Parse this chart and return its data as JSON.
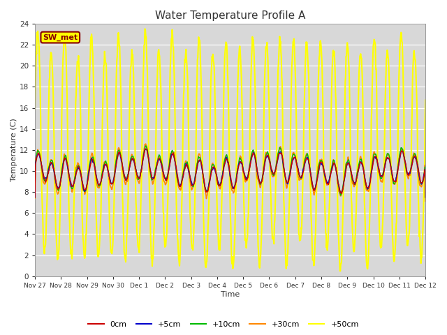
{
  "title": "Water Temperature Profile A",
  "xlabel": "Time",
  "ylabel": "Temperature (C)",
  "ylim": [
    0,
    24
  ],
  "background_color": "#ffffff",
  "plot_bg_color": "#d8d8d8",
  "annotation_label": "SW_met",
  "annotation_bg": "#ffff00",
  "annotation_border": "#880000",
  "annotation_text_color": "#880000",
  "x_tick_labels": [
    "Nov 27",
    "Nov 28",
    "Nov 29",
    "Nov 30",
    "Dec 1",
    "Dec 2",
    "Dec 3",
    "Dec 4",
    "Dec 5",
    "Dec 6",
    "Dec 7",
    "Dec 8",
    "Dec 9",
    "Dec 10",
    "Dec 11",
    "Dec 12"
  ],
  "series_colors": {
    "0cm": "#cc0000",
    "+5cm": "#0000cc",
    "+10cm": "#00bb00",
    "+30cm": "#ff8800",
    "+50cm": "#ffff00"
  },
  "legend_entries": [
    "0cm",
    "+5cm",
    "+10cm",
    "+30cm",
    "+50cm"
  ],
  "n_points": 960,
  "total_days": 15.0
}
